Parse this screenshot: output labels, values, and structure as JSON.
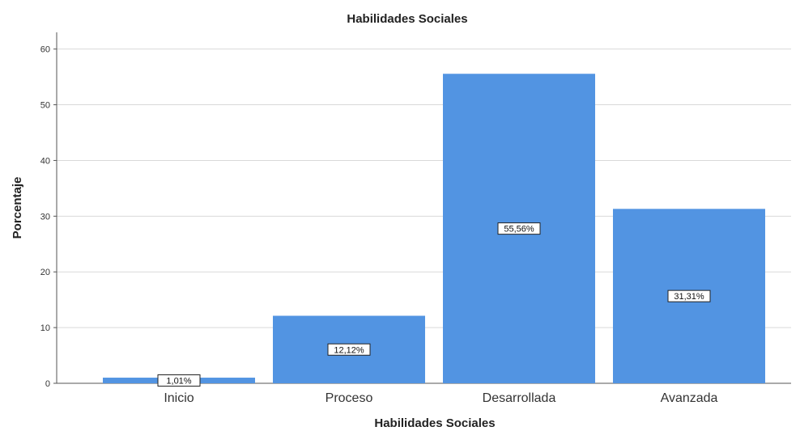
{
  "chart_data": {
    "type": "bar",
    "title": "Habilidades Sociales",
    "xlabel": "Habilidades Sociales",
    "ylabel": "Porcentaje",
    "categories": [
      "Inicio",
      "Proceso",
      "Desarrollada",
      "Avanzada"
    ],
    "values": [
      1.01,
      12.12,
      55.56,
      31.31
    ],
    "data_labels": [
      "1,01%",
      "12,12%",
      "55,56%",
      "31,31%"
    ],
    "ylim": [
      0,
      63
    ],
    "yticks": [
      0,
      10,
      20,
      30,
      40,
      50,
      60
    ],
    "grid": true,
    "legend": "none",
    "bar_color": "#5294e2"
  }
}
